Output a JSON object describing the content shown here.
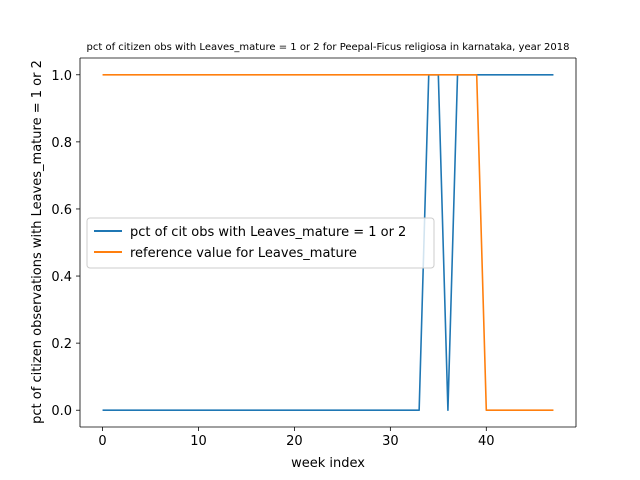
{
  "chart_data": {
    "type": "line",
    "title": "pct of citizen obs with Leaves_mature = 1 or 2 for Peepal-Ficus religiosa in karnataka, year 2018",
    "xlabel": "week index",
    "ylabel": "pct of citizen observations with Leaves_mature = 1 or 2",
    "xlim": [
      -2.35,
      49.35
    ],
    "ylim": [
      -0.05,
      1.05
    ],
    "xticks": [
      0,
      10,
      20,
      30,
      40
    ],
    "xtick_labels": [
      "0",
      "10",
      "20",
      "30",
      "40"
    ],
    "yticks": [
      0.0,
      0.2,
      0.4,
      0.6,
      0.8,
      1.0
    ],
    "ytick_labels": [
      "0.0",
      "0.2",
      "0.4",
      "0.6",
      "0.8",
      "1.0"
    ],
    "grid": false,
    "legend_position": "center-left",
    "series": [
      {
        "name": "pct of cit obs with Leaves_mature = 1 or 2",
        "color": "#1f77b4",
        "x": [
          0,
          1,
          2,
          3,
          4,
          5,
          6,
          7,
          8,
          9,
          10,
          11,
          12,
          13,
          14,
          15,
          16,
          17,
          18,
          19,
          20,
          21,
          22,
          23,
          24,
          25,
          26,
          27,
          28,
          29,
          30,
          31,
          32,
          33,
          34,
          35,
          36,
          37,
          38,
          39,
          40,
          41,
          42,
          43,
          44,
          45,
          46,
          47
        ],
        "y": [
          0,
          0,
          0,
          0,
          0,
          0,
          0,
          0,
          0,
          0,
          0,
          0,
          0,
          0,
          0,
          0,
          0,
          0,
          0,
          0,
          0,
          0,
          0,
          0,
          0,
          0,
          0,
          0,
          0,
          0,
          0,
          0,
          0,
          0,
          1,
          1,
          0,
          1,
          1,
          1,
          1,
          1,
          1,
          1,
          1,
          1,
          1,
          1
        ]
      },
      {
        "name": "reference value for Leaves_mature",
        "color": "#ff7f0e",
        "x": [
          0,
          1,
          2,
          3,
          4,
          5,
          6,
          7,
          8,
          9,
          10,
          11,
          12,
          13,
          14,
          15,
          16,
          17,
          18,
          19,
          20,
          21,
          22,
          23,
          24,
          25,
          26,
          27,
          28,
          29,
          30,
          31,
          32,
          33,
          34,
          35,
          36,
          37,
          38,
          39,
          40,
          41,
          42,
          43,
          44,
          45,
          46,
          47
        ],
        "y": [
          1,
          1,
          1,
          1,
          1,
          1,
          1,
          1,
          1,
          1,
          1,
          1,
          1,
          1,
          1,
          1,
          1,
          1,
          1,
          1,
          1,
          1,
          1,
          1,
          1,
          1,
          1,
          1,
          1,
          1,
          1,
          1,
          1,
          1,
          1,
          1,
          1,
          1,
          1,
          1,
          0,
          0,
          0,
          0,
          0,
          0,
          0,
          0
        ]
      }
    ]
  }
}
